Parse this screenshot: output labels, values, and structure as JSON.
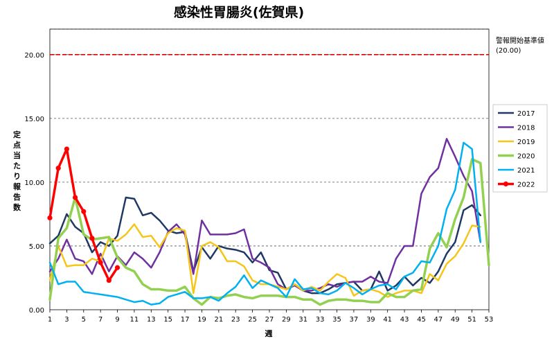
{
  "chart_data": {
    "type": "line",
    "title": "感染性胃腸炎(佐賀県)",
    "xlabel": "週",
    "ylabel": "定点当たり報告数",
    "xlim": [
      1,
      53
    ],
    "ylim": [
      0,
      22
    ],
    "yticks": [
      "0.00",
      "5.00",
      "10.00",
      "15.00",
      "20.00"
    ],
    "xticks": [
      "1",
      "3",
      "5",
      "7",
      "9",
      "11",
      "13",
      "15",
      "17",
      "19",
      "21",
      "23",
      "25",
      "27",
      "29",
      "31",
      "33",
      "35",
      "37",
      "39",
      "41",
      "43",
      "45",
      "47",
      "49",
      "51",
      "53"
    ],
    "grid": "horizontal dashed",
    "legend_position": "right",
    "threshold": {
      "label": "警報開始基準値",
      "value_label": "(20.00)",
      "value": 20.0,
      "color": "#e00000"
    },
    "series": [
      {
        "name": "2017",
        "color": "#1f3864",
        "width": 2.5,
        "markers": false,
        "values": [
          5.2,
          5.8,
          7.5,
          6.5,
          6.0,
          4.5,
          5.3,
          5.0,
          5.8,
          8.8,
          8.7,
          7.4,
          7.6,
          7.0,
          6.2,
          6.0,
          6.1,
          3.0,
          4.9,
          4.0,
          5.0,
          4.8,
          4.7,
          4.5,
          3.7,
          4.5,
          3.1,
          2.9,
          1.6,
          2.0,
          1.5,
          1.3,
          1.3,
          1.6,
          2.0,
          2.1,
          2.2,
          1.5,
          1.6,
          3.0,
          1.5,
          1.9,
          2.6,
          1.9,
          2.5,
          2.1,
          3.0,
          4.4,
          5.3,
          7.8,
          8.2,
          7.4
        ]
      },
      {
        "name": "2018",
        "color": "#7030a0",
        "width": 2.5,
        "markers": false,
        "values": [
          3.0,
          4.0,
          5.5,
          4.0,
          3.8,
          2.8,
          4.4,
          3.0,
          4.2,
          3.5,
          4.5,
          4.0,
          3.3,
          4.5,
          6.1,
          6.7,
          5.9,
          2.8,
          7.0,
          5.9,
          5.9,
          5.9,
          6.0,
          6.3,
          4.0,
          3.7,
          3.3,
          2.0,
          1.6,
          1.9,
          1.5,
          1.5,
          1.7,
          2.0,
          1.8,
          2.1,
          2.2,
          2.2,
          2.6,
          2.2,
          2.1,
          4.0,
          5.0,
          5.0,
          9.1,
          10.4,
          11.1,
          13.4,
          12.0,
          10.5,
          9.3,
          5.3
        ]
      },
      {
        "name": "2019",
        "color": "#f5c518",
        "width": 2.5,
        "markers": false,
        "values": [
          2.3,
          5.0,
          3.4,
          3.5,
          3.5,
          4.0,
          3.8,
          5.6,
          5.4,
          5.9,
          6.7,
          5.7,
          5.8,
          4.9,
          6.0,
          6.4,
          6.2,
          1.3,
          5.0,
          5.3,
          4.9,
          3.8,
          3.8,
          3.4,
          2.3,
          2.0,
          2.0,
          1.8,
          1.6,
          2.0,
          1.5,
          1.8,
          1.5,
          2.2,
          2.8,
          2.5,
          1.1,
          1.5,
          1.6,
          1.4,
          1.0,
          1.3,
          1.5,
          1.5,
          1.3,
          2.8,
          2.3,
          3.6,
          4.2,
          5.2,
          6.6,
          6.5
        ]
      },
      {
        "name": "2020",
        "color": "#92d050",
        "width": 3.5,
        "markers": false,
        "values": [
          0.8,
          5.6,
          6.4,
          8.8,
          5.9,
          5.5,
          5.6,
          5.7,
          4.1,
          3.3,
          3.0,
          2.0,
          1.6,
          1.6,
          1.5,
          1.5,
          1.8,
          0.9,
          0.4,
          1.0,
          0.9,
          1.1,
          1.2,
          1.0,
          0.9,
          1.1,
          1.1,
          1.1,
          1.0,
          1.0,
          0.8,
          0.8,
          0.4,
          0.7,
          0.8,
          0.8,
          0.7,
          0.7,
          0.6,
          0.6,
          1.3,
          1.0,
          1.0,
          1.5,
          1.6,
          4.8,
          6.0,
          4.9,
          7.1,
          8.8,
          11.8,
          11.5,
          3.5
        ]
      },
      {
        "name": "2021",
        "color": "#00b0f0",
        "width": 2.5,
        "markers": false,
        "values": [
          3.7,
          2.0,
          2.2,
          2.2,
          1.4,
          1.3,
          1.2,
          1.1,
          1.0,
          0.8,
          0.6,
          0.7,
          0.4,
          0.5,
          1.0,
          1.2,
          1.4,
          0.9,
          0.9,
          1.0,
          0.7,
          1.3,
          1.8,
          2.7,
          1.7,
          2.3,
          2.0,
          1.7,
          1.0,
          2.4,
          1.6,
          1.7,
          1.3,
          1.2,
          1.5,
          2.1,
          1.7,
          1.2,
          1.6,
          1.9,
          2.0,
          1.6,
          2.6,
          2.9,
          3.8,
          3.7,
          5.0,
          7.9,
          9.4,
          13.1,
          12.6,
          5.3
        ]
      },
      {
        "name": "2022",
        "color": "#ff0000",
        "width": 3.5,
        "markers": true,
        "values": [
          7.2,
          11.1,
          12.6,
          8.8,
          7.7,
          5.6,
          3.7,
          2.3,
          3.3
        ]
      }
    ]
  }
}
